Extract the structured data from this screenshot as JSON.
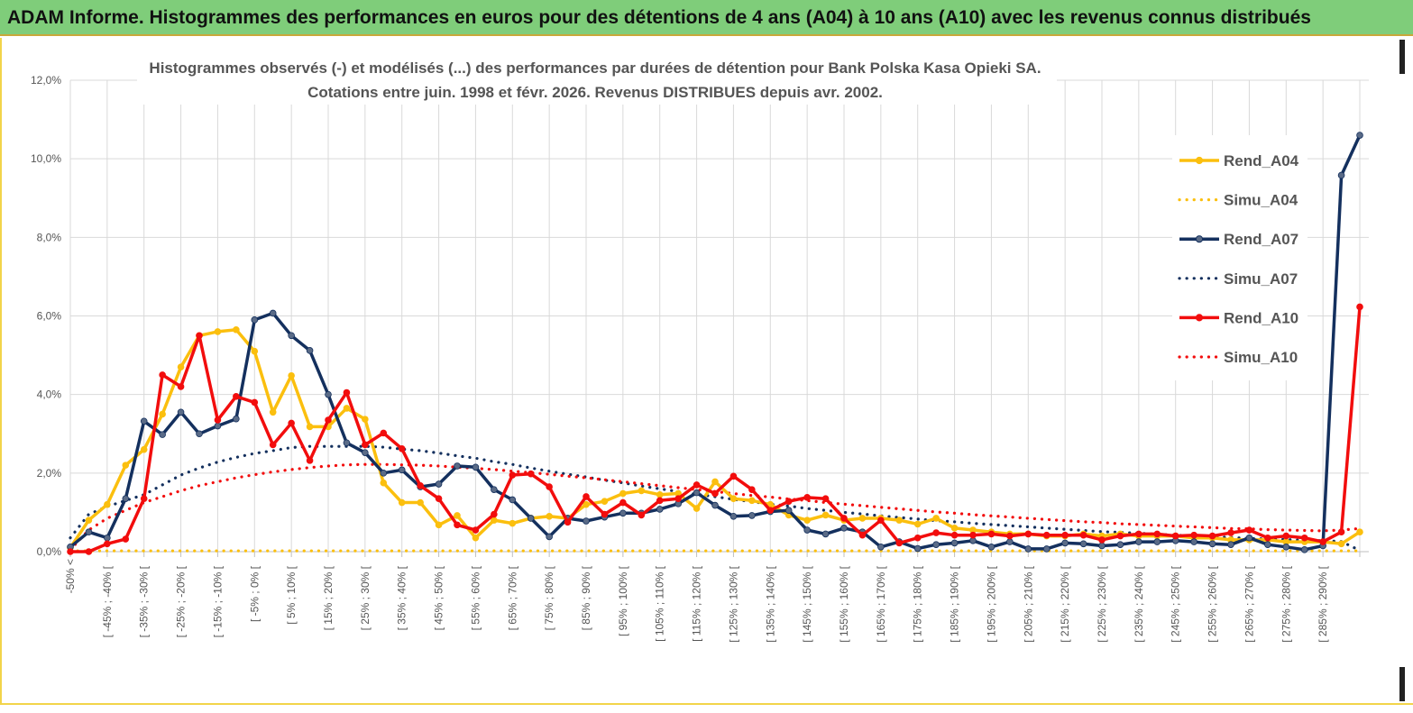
{
  "header": {
    "title": "ADAM Informe. Histogrammes des performances en euros pour des détentions de 4 ans (A04) à 10 ans (A10) avec les revenus connus distribués"
  },
  "colors": {
    "banner": "#7fcd7a",
    "a04": "#fbbf0e",
    "a07": "#14305e",
    "a10": "#f20d0d",
    "grid": "#d9d9d9"
  },
  "chart_data": {
    "type": "line",
    "title_lines": [
      "Histogrammes observés (-) et modélisés (...) des performances par durées de détention pour Bank Polska Kasa Opieki SA.",
      "Cotations entre juin. 1998 et févr. 2026. Revenus DISTRIBUES depuis avr. 2002."
    ],
    "xlabel": "",
    "ylabel": "",
    "ylim": [
      0,
      0.12
    ],
    "y_ticks": [
      "0,0%",
      "2,0%",
      "4,0%",
      "6,0%",
      "8,0%",
      "10,0%",
      "12,0%"
    ],
    "x_tick_labels": [
      "-50% <",
      "[ -45% ; -40% [",
      "[ -35% ; -30% [",
      "[ -25% ; -20% [",
      "[ -15% ; -10% [",
      "[ -5% ; 0% [",
      "[ 5% ; 10% [",
      "[ 15% ; 20% [",
      "[ 25% ; 30% [",
      "[ 35% ; 40% [",
      "[ 45% ; 50% [",
      "[ 55% ; 60% [",
      "[ 65% ; 70% [",
      "[ 75% ; 80% [",
      "[ 85% ; 90% [",
      "[ 95% ; 100% [",
      "[ 105% ; 110% [",
      "[ 115% ; 120% [",
      "[ 125% ; 130% [",
      "[ 135% ; 140% [",
      "[ 145% ; 150% [",
      "[ 155% ; 160% [",
      "[ 165% ; 170% [",
      "[ 175% ; 180% [",
      "[ 185% ; 190% [",
      "[ 195% ; 200% [",
      "[ 205% ; 210% [",
      "[ 215% ; 220% [",
      "[ 225% ; 230% [",
      "[ 235% ; 240% [",
      "[ 245% ; 250% [",
      "[ 255% ; 260% [",
      "[ 265% ; 270% [",
      "[ 275% ; 280% [",
      "[ 285% ; 290% ["
    ],
    "n_bins": 71,
    "series": [
      {
        "name": "Rend_A04",
        "color": "#fbbf0e",
        "style": "solid",
        "marker": true,
        "values": [
          0.001,
          0.008,
          0.012,
          0.022,
          0.026,
          0.035,
          0.047,
          0.055,
          0.056,
          0.0565,
          0.051,
          0.0355,
          0.0448,
          0.0318,
          0.0318,
          0.0365,
          0.0337,
          0.0175,
          0.0125,
          0.0125,
          0.0068,
          0.0092,
          0.0035,
          0.008,
          0.0072,
          0.0085,
          0.009,
          0.0085,
          0.012,
          0.0128,
          0.0148,
          0.0155,
          0.0145,
          0.0148,
          0.011,
          0.0178,
          0.0135,
          0.013,
          0.012,
          0.0093,
          0.008,
          0.0093,
          0.008,
          0.0085,
          0.0085,
          0.008,
          0.007,
          0.0085,
          0.006,
          0.0055,
          0.005,
          0.0045,
          0.0045,
          0.004,
          0.004,
          0.0045,
          0.004,
          0.0045,
          0.004,
          0.004,
          0.004,
          0.0035,
          0.0035,
          0.003,
          0.003,
          0.003,
          0.0025,
          0.0025,
          0.0025,
          0.002,
          0.005
        ]
      },
      {
        "name": "Simu_A04",
        "color": "#fbbf0e",
        "style": "dotted",
        "marker": false,
        "values": [
          0.0002,
          0.0002,
          0.0002,
          0.0002,
          0.0002,
          0.0002,
          0.0002,
          0.0002,
          0.0002,
          0.0002,
          0.0002,
          0.0002,
          0.0002,
          0.0002,
          0.0002,
          0.0002,
          0.0002,
          0.0002,
          0.0002,
          0.0002,
          0.0002,
          0.0002,
          0.0002,
          0.0002,
          0.0002,
          0.0002,
          0.0002,
          0.0002,
          0.0002,
          0.0002,
          0.0002,
          0.0002,
          0.0002,
          0.0002,
          0.0002,
          0.0002,
          0.0002,
          0.0002,
          0.0002,
          0.0002,
          0.0002,
          0.0002,
          0.0002,
          0.0002,
          0.0002,
          0.0002,
          0.0002,
          0.0002,
          0.0002,
          0.0002,
          0.0002,
          0.0002,
          0.0002,
          0.0002,
          0.0002,
          0.0002,
          0.0002,
          0.0002,
          0.0002,
          0.0002,
          0.0002,
          0.0002,
          0.0002,
          0.0002,
          0.0002,
          0.0002,
          0.0002,
          0.0002,
          0.0002,
          0.0002,
          0.0002
        ]
      },
      {
        "name": "Rend_A07",
        "color": "#14305e",
        "style": "solid",
        "marker": true,
        "values": [
          0.0012,
          0.005,
          0.0035,
          0.0135,
          0.0332,
          0.0298,
          0.0355,
          0.03,
          0.032,
          0.0338,
          0.059,
          0.0607,
          0.055,
          0.0512,
          0.04,
          0.0277,
          0.0252,
          0.02,
          0.0208,
          0.0165,
          0.0172,
          0.0218,
          0.0215,
          0.0158,
          0.0132,
          0.0085,
          0.0038,
          0.0085,
          0.0078,
          0.0088,
          0.0098,
          0.0098,
          0.0108,
          0.0122,
          0.015,
          0.0118,
          0.009,
          0.0092,
          0.0102,
          0.0105,
          0.0055,
          0.0045,
          0.006,
          0.005,
          0.0012,
          0.0025,
          0.0008,
          0.0018,
          0.0022,
          0.0028,
          0.0012,
          0.0025,
          0.0007,
          0.0007,
          0.0022,
          0.002,
          0.0015,
          0.0018,
          0.0025,
          0.0025,
          0.0028,
          0.0025,
          0.002,
          0.0018,
          0.0035,
          0.0018,
          0.0012,
          0.0005,
          0.0015,
          0.0958,
          0.106
        ]
      },
      {
        "name": "Simu_A07",
        "color": "#14305e",
        "style": "dotted",
        "marker": false,
        "values": [
          0.0035,
          0.0095,
          0.0115,
          0.013,
          0.0145,
          0.017,
          0.0195,
          0.0213,
          0.0228,
          0.024,
          0.025,
          0.0257,
          0.0265,
          0.0268,
          0.0268,
          0.0268,
          0.0268,
          0.0266,
          0.0261,
          0.0257,
          0.0251,
          0.0244,
          0.0238,
          0.0229,
          0.0222,
          0.0213,
          0.0205,
          0.0197,
          0.019,
          0.0182,
          0.0175,
          0.0167,
          0.016,
          0.0153,
          0.0146,
          0.014,
          0.0133,
          0.0127,
          0.0121,
          0.0116,
          0.011,
          0.0105,
          0.01,
          0.0096,
          0.0091,
          0.0087,
          0.0083,
          0.0079,
          0.0076,
          0.0072,
          0.0069,
          0.0066,
          0.0063,
          0.006,
          0.0057,
          0.0054,
          0.0051,
          0.0049,
          0.0047,
          0.0044,
          0.0042,
          0.004,
          0.0038,
          0.0036,
          0.0034,
          0.0032,
          0.0031,
          0.0029,
          0.0028,
          0.0026,
          0.0003
        ]
      },
      {
        "name": "Rend_A10",
        "color": "#f20d0d",
        "style": "solid",
        "marker": true,
        "values": [
          0.0,
          0.0,
          0.002,
          0.0032,
          0.0135,
          0.045,
          0.042,
          0.055,
          0.0335,
          0.0395,
          0.038,
          0.0272,
          0.0327,
          0.0232,
          0.0335,
          0.0405,
          0.0272,
          0.0302,
          0.0262,
          0.0168,
          0.0135,
          0.0068,
          0.0055,
          0.0095,
          0.0195,
          0.0198,
          0.0165,
          0.0075,
          0.014,
          0.0095,
          0.0125,
          0.0093,
          0.013,
          0.0135,
          0.017,
          0.0148,
          0.0192,
          0.0158,
          0.0105,
          0.0128,
          0.0138,
          0.0135,
          0.0085,
          0.0042,
          0.008,
          0.0022,
          0.0035,
          0.0048,
          0.0042,
          0.0042,
          0.0045,
          0.004,
          0.0045,
          0.0042,
          0.0042,
          0.0042,
          0.003,
          0.004,
          0.0045,
          0.0045,
          0.004,
          0.0042,
          0.004,
          0.0048,
          0.0055,
          0.0035,
          0.004,
          0.0035,
          0.0025,
          0.005,
          0.0623
        ]
      },
      {
        "name": "Simu_A10",
        "color": "#f20d0d",
        "style": "dotted",
        "marker": false,
        "values": [
          0.0005,
          0.0055,
          0.0085,
          0.0105,
          0.0125,
          0.014,
          0.0155,
          0.0168,
          0.0178,
          0.0188,
          0.0196,
          0.0203,
          0.0209,
          0.0214,
          0.0218,
          0.0221,
          0.0222,
          0.0222,
          0.0221,
          0.022,
          0.0218,
          0.0215,
          0.0212,
          0.0209,
          0.0205,
          0.0201,
          0.0197,
          0.0192,
          0.0188,
          0.0183,
          0.0178,
          0.0173,
          0.0168,
          0.0163,
          0.0158,
          0.0153,
          0.0148,
          0.0143,
          0.0139,
          0.0134,
          0.013,
          0.0125,
          0.0121,
          0.0117,
          0.0113,
          0.0109,
          0.0105,
          0.0101,
          0.0098,
          0.0094,
          0.0091,
          0.0088,
          0.0085,
          0.0082,
          0.0079,
          0.0076,
          0.0074,
          0.0071,
          0.0069,
          0.0067,
          0.0065,
          0.0063,
          0.0061,
          0.0059,
          0.0058,
          0.0056,
          0.0055,
          0.0054,
          0.0053,
          0.0055,
          0.0059
        ]
      }
    ],
    "legend_position": "right"
  }
}
